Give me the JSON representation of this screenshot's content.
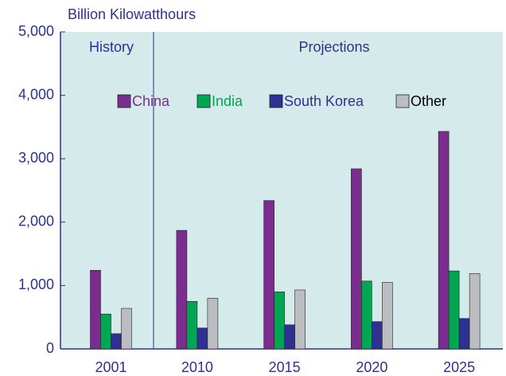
{
  "chart_data": {
    "type": "bar",
    "y_label": "Billion Kilowatthours",
    "annotations": [
      "History",
      "Projections"
    ],
    "categories": [
      "2001",
      "2010",
      "2015",
      "2020",
      "2025"
    ],
    "series": [
      {
        "name": "China",
        "color": "#7b2d8e",
        "values": [
          1240,
          1870,
          2340,
          2840,
          3430
        ]
      },
      {
        "name": "India",
        "color": "#00a651",
        "values": [
          550,
          750,
          900,
          1070,
          1230
        ]
      },
      {
        "name": "South Korea",
        "color": "#2e3192",
        "values": [
          240,
          330,
          380,
          430,
          480
        ]
      },
      {
        "name": "Other",
        "color": "#bcbdc0",
        "values": [
          640,
          800,
          930,
          1050,
          1190
        ]
      }
    ],
    "ylim": [
      0,
      5000
    ],
    "yticks": [
      0,
      {
        "value": 1000,
        "label": "1,000"
      },
      {
        "value": 2000,
        "label": "2,000"
      },
      {
        "value": 3000,
        "label": "3,000"
      },
      {
        "value": 4000,
        "label": "4,000"
      },
      {
        "value": 5000,
        "label": "5,000"
      }
    ]
  }
}
